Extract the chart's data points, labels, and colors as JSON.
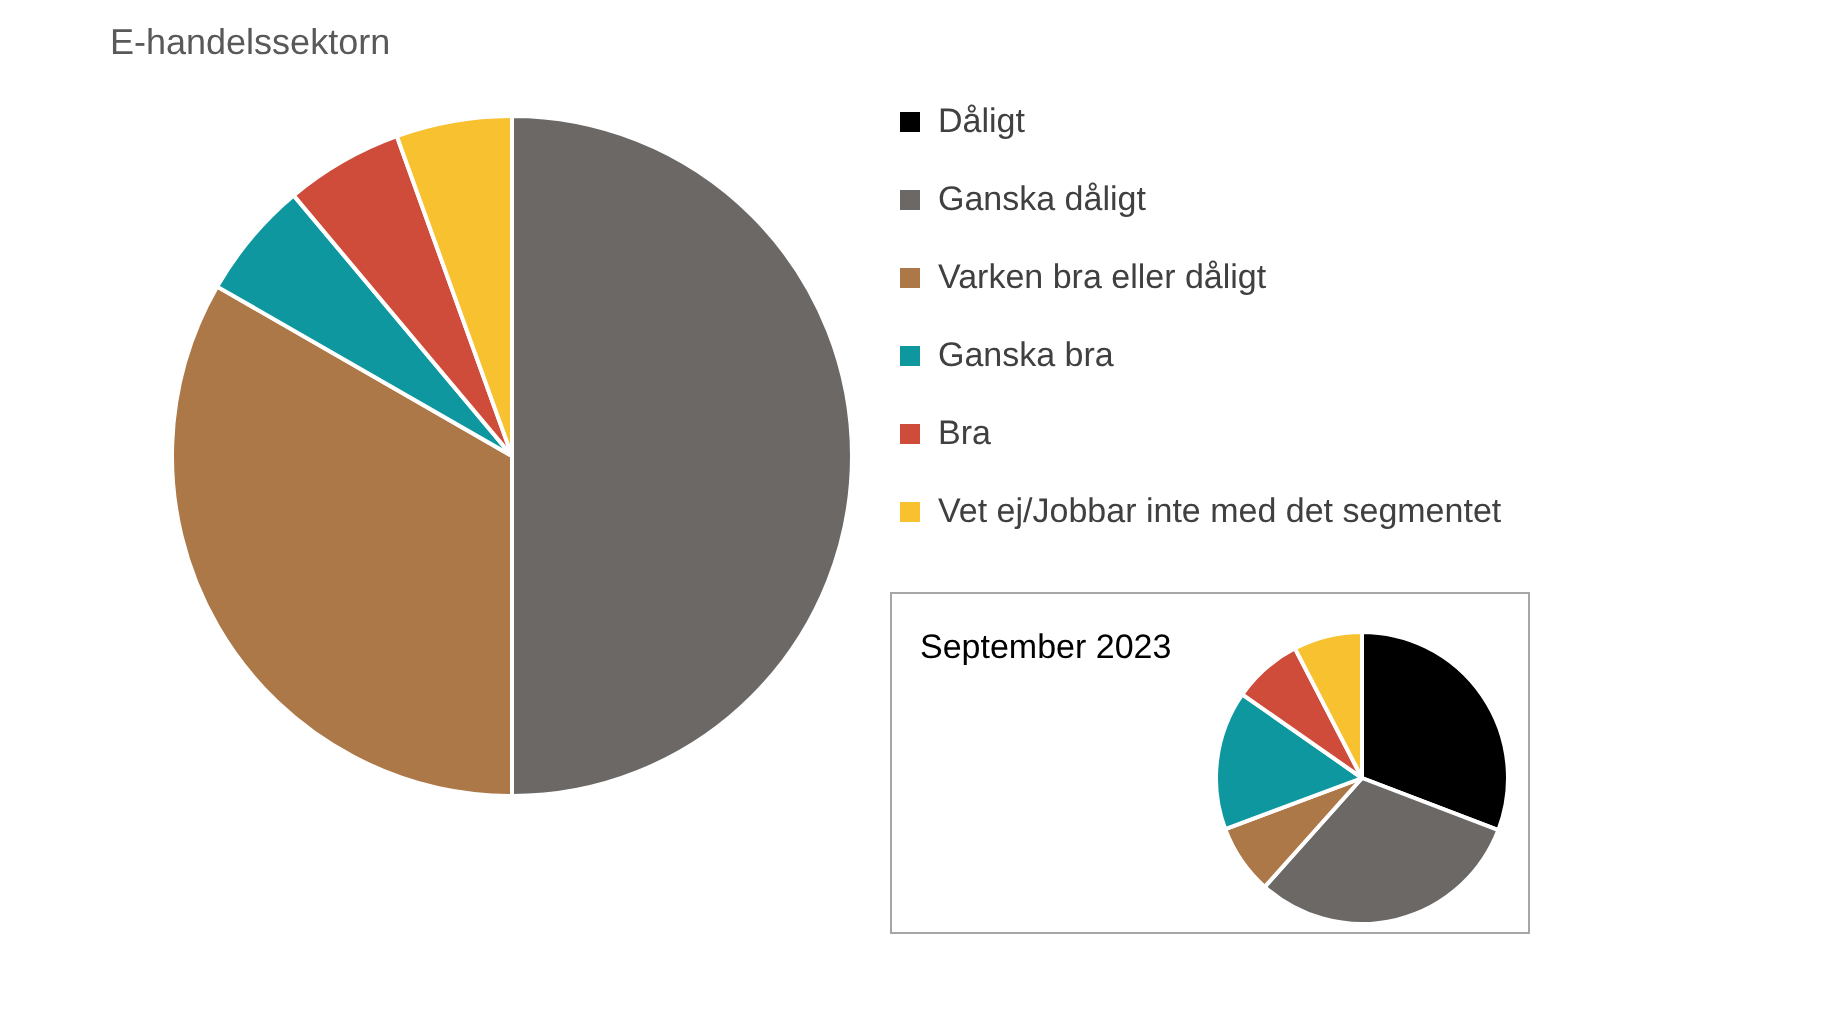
{
  "chart_data": [
    {
      "type": "pie",
      "title": "E-handelssektorn",
      "categories": [
        "Dåligt",
        "Ganska dåligt",
        "Varken bra eller dåligt",
        "Ganska bra",
        "Bra",
        "Vet ej/Jobbar inte med det segmentet"
      ],
      "values": [
        0,
        50,
        33.3,
        5.6,
        5.6,
        5.5
      ],
      "colors": [
        "#000000",
        "#6b6865",
        "#ad7848",
        "#0f97a0",
        "#cf4b3a",
        "#f7c12f"
      ],
      "legend": "right"
    },
    {
      "type": "pie",
      "title": "September 2023",
      "categories": [
        null,
        null,
        null,
        null,
        null,
        null
      ],
      "values": [
        30.8,
        30.8,
        7.7,
        15.4,
        7.7,
        7.6
      ],
      "colors": [
        "#000000",
        "#6b6865",
        "#ad7848",
        "#0f97a0",
        "#cf4b3a",
        "#f7c12f"
      ]
    }
  ]
}
